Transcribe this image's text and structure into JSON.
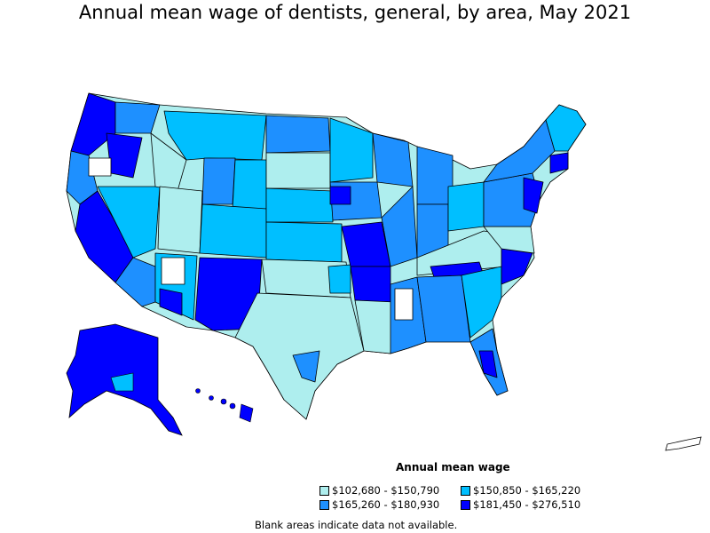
{
  "title": "Annual mean wage of dentists, general, by area, May 2021",
  "legend": {
    "title": "Annual mean wage",
    "items": [
      {
        "label": "$102,680 - $150,790",
        "color": "#aeeeee"
      },
      {
        "label": "$150,850 - $165,220",
        "color": "#00bfff"
      },
      {
        "label": "$165,260 - $180,930",
        "color": "#1e90ff"
      },
      {
        "label": "$181,450 - $276,510",
        "color": "#0000ff"
      }
    ]
  },
  "note": "Blank areas indicate data not available."
}
